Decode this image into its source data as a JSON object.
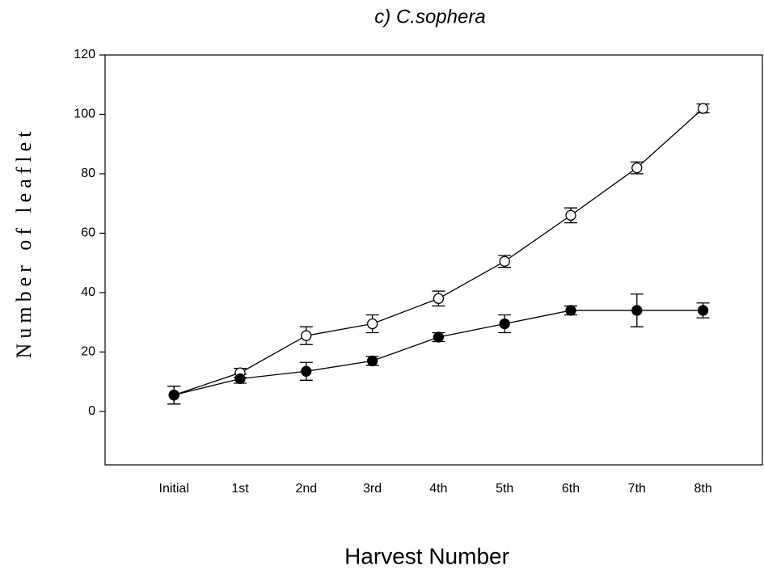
{
  "chart_data": {
    "type": "line",
    "title": "c) C.sophera",
    "xlabel": "Harvest Number",
    "ylabel": "Number of leaflet",
    "categories": [
      "Initial",
      "1st",
      "2nd",
      "3rd",
      "4th",
      "5th",
      "6th",
      "7th",
      "8th"
    ],
    "series": [
      {
        "color": "#000000",
        "marker": "open",
        "values": [
          5.5,
          13,
          25.5,
          29.5,
          38,
          50.5,
          66,
          82,
          102
        ],
        "errors": [
          3,
          1.5,
          3,
          3,
          2.5,
          2,
          2.5,
          2,
          1.5
        ]
      },
      {
        "color": "#000000",
        "marker": "filled",
        "values": [
          5.5,
          11,
          13.5,
          17,
          25,
          29.5,
          34,
          34,
          34
        ],
        "errors": [
          3,
          1.5,
          3,
          1.5,
          1.5,
          3,
          1.5,
          5.5,
          2.5
        ]
      }
    ],
    "ylim": [
      -18,
      120
    ],
    "yticks": [
      0,
      20,
      40,
      60,
      80,
      100,
      120
    ],
    "grid": false
  }
}
